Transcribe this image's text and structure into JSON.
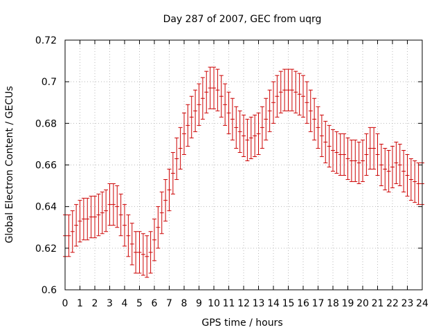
{
  "chart_data": {
    "type": "line",
    "title": "Day 287 of 2007, GEC from uqrg",
    "xlabel": "GPS time / hours",
    "ylabel": "Global Electron Content / GECUs",
    "xlim": [
      0,
      24
    ],
    "ylim": [
      0.6,
      0.72
    ],
    "x_ticks": [
      0,
      1,
      2,
      3,
      4,
      5,
      6,
      7,
      8,
      9,
      10,
      11,
      12,
      13,
      14,
      15,
      16,
      17,
      18,
      19,
      20,
      21,
      22,
      23,
      24
    ],
    "y_ticks": [
      0.6,
      0.62,
      0.64,
      0.66,
      0.68,
      0.7,
      0.72
    ],
    "x_tick_labels": [
      "0",
      "1",
      "2",
      "3",
      "4",
      "5",
      "6",
      "7",
      "8",
      "9",
      "10",
      "11",
      "12",
      "13",
      "14",
      "15",
      "16",
      "17",
      "18",
      "19",
      "20",
      "21",
      "22",
      "23",
      "24"
    ],
    "y_tick_labels": [
      "0.6",
      "0.62",
      "0.64",
      "0.66",
      "0.68",
      "0.7",
      "0.72"
    ],
    "grid": true,
    "color": "#cc0000",
    "series": [
      {
        "error": 0.01,
        "x": [
          0,
          0.25,
          0.5,
          0.75,
          1,
          1.25,
          1.5,
          1.75,
          2,
          2.25,
          2.5,
          2.75,
          3,
          3.25,
          3.5,
          3.75,
          4,
          4.25,
          4.5,
          4.75,
          5,
          5.25,
          5.5,
          5.75,
          6,
          6.25,
          6.5,
          6.75,
          7,
          7.25,
          7.5,
          7.75,
          8,
          8.25,
          8.5,
          8.75,
          9,
          9.25,
          9.5,
          9.75,
          10,
          10.25,
          10.5,
          10.75,
          11,
          11.25,
          11.5,
          11.75,
          12,
          12.25,
          12.5,
          12.75,
          13,
          13.25,
          13.5,
          13.75,
          14,
          14.25,
          14.5,
          14.75,
          15,
          15.25,
          15.5,
          15.75,
          16,
          16.25,
          16.5,
          16.75,
          17,
          17.25,
          17.5,
          17.75,
          18,
          18.25,
          18.5,
          18.75,
          19,
          19.25,
          19.5,
          19.75,
          20,
          20.25,
          20.5,
          20.75,
          21,
          21.25,
          21.5,
          21.75,
          22,
          22.25,
          22.5,
          22.75,
          23,
          23.25,
          23.5,
          23.75,
          24
        ],
        "y": [
          0.626,
          0.626,
          0.628,
          0.631,
          0.633,
          0.634,
          0.634,
          0.635,
          0.635,
          0.636,
          0.637,
          0.638,
          0.641,
          0.641,
          0.64,
          0.636,
          0.631,
          0.626,
          0.622,
          0.618,
          0.618,
          0.617,
          0.616,
          0.618,
          0.624,
          0.63,
          0.637,
          0.643,
          0.648,
          0.656,
          0.663,
          0.668,
          0.675,
          0.679,
          0.683,
          0.686,
          0.689,
          0.692,
          0.695,
          0.697,
          0.697,
          0.696,
          0.693,
          0.689,
          0.685,
          0.682,
          0.678,
          0.676,
          0.674,
          0.672,
          0.673,
          0.674,
          0.675,
          0.678,
          0.682,
          0.686,
          0.69,
          0.693,
          0.695,
          0.696,
          0.696,
          0.696,
          0.695,
          0.694,
          0.693,
          0.69,
          0.686,
          0.682,
          0.678,
          0.674,
          0.671,
          0.669,
          0.667,
          0.666,
          0.665,
          0.665,
          0.663,
          0.662,
          0.662,
          0.661,
          0.662,
          0.665,
          0.668,
          0.668,
          0.665,
          0.66,
          0.658,
          0.657,
          0.659,
          0.661,
          0.66,
          0.657,
          0.655,
          0.653,
          0.652,
          0.651,
          0.651
        ]
      }
    ]
  }
}
